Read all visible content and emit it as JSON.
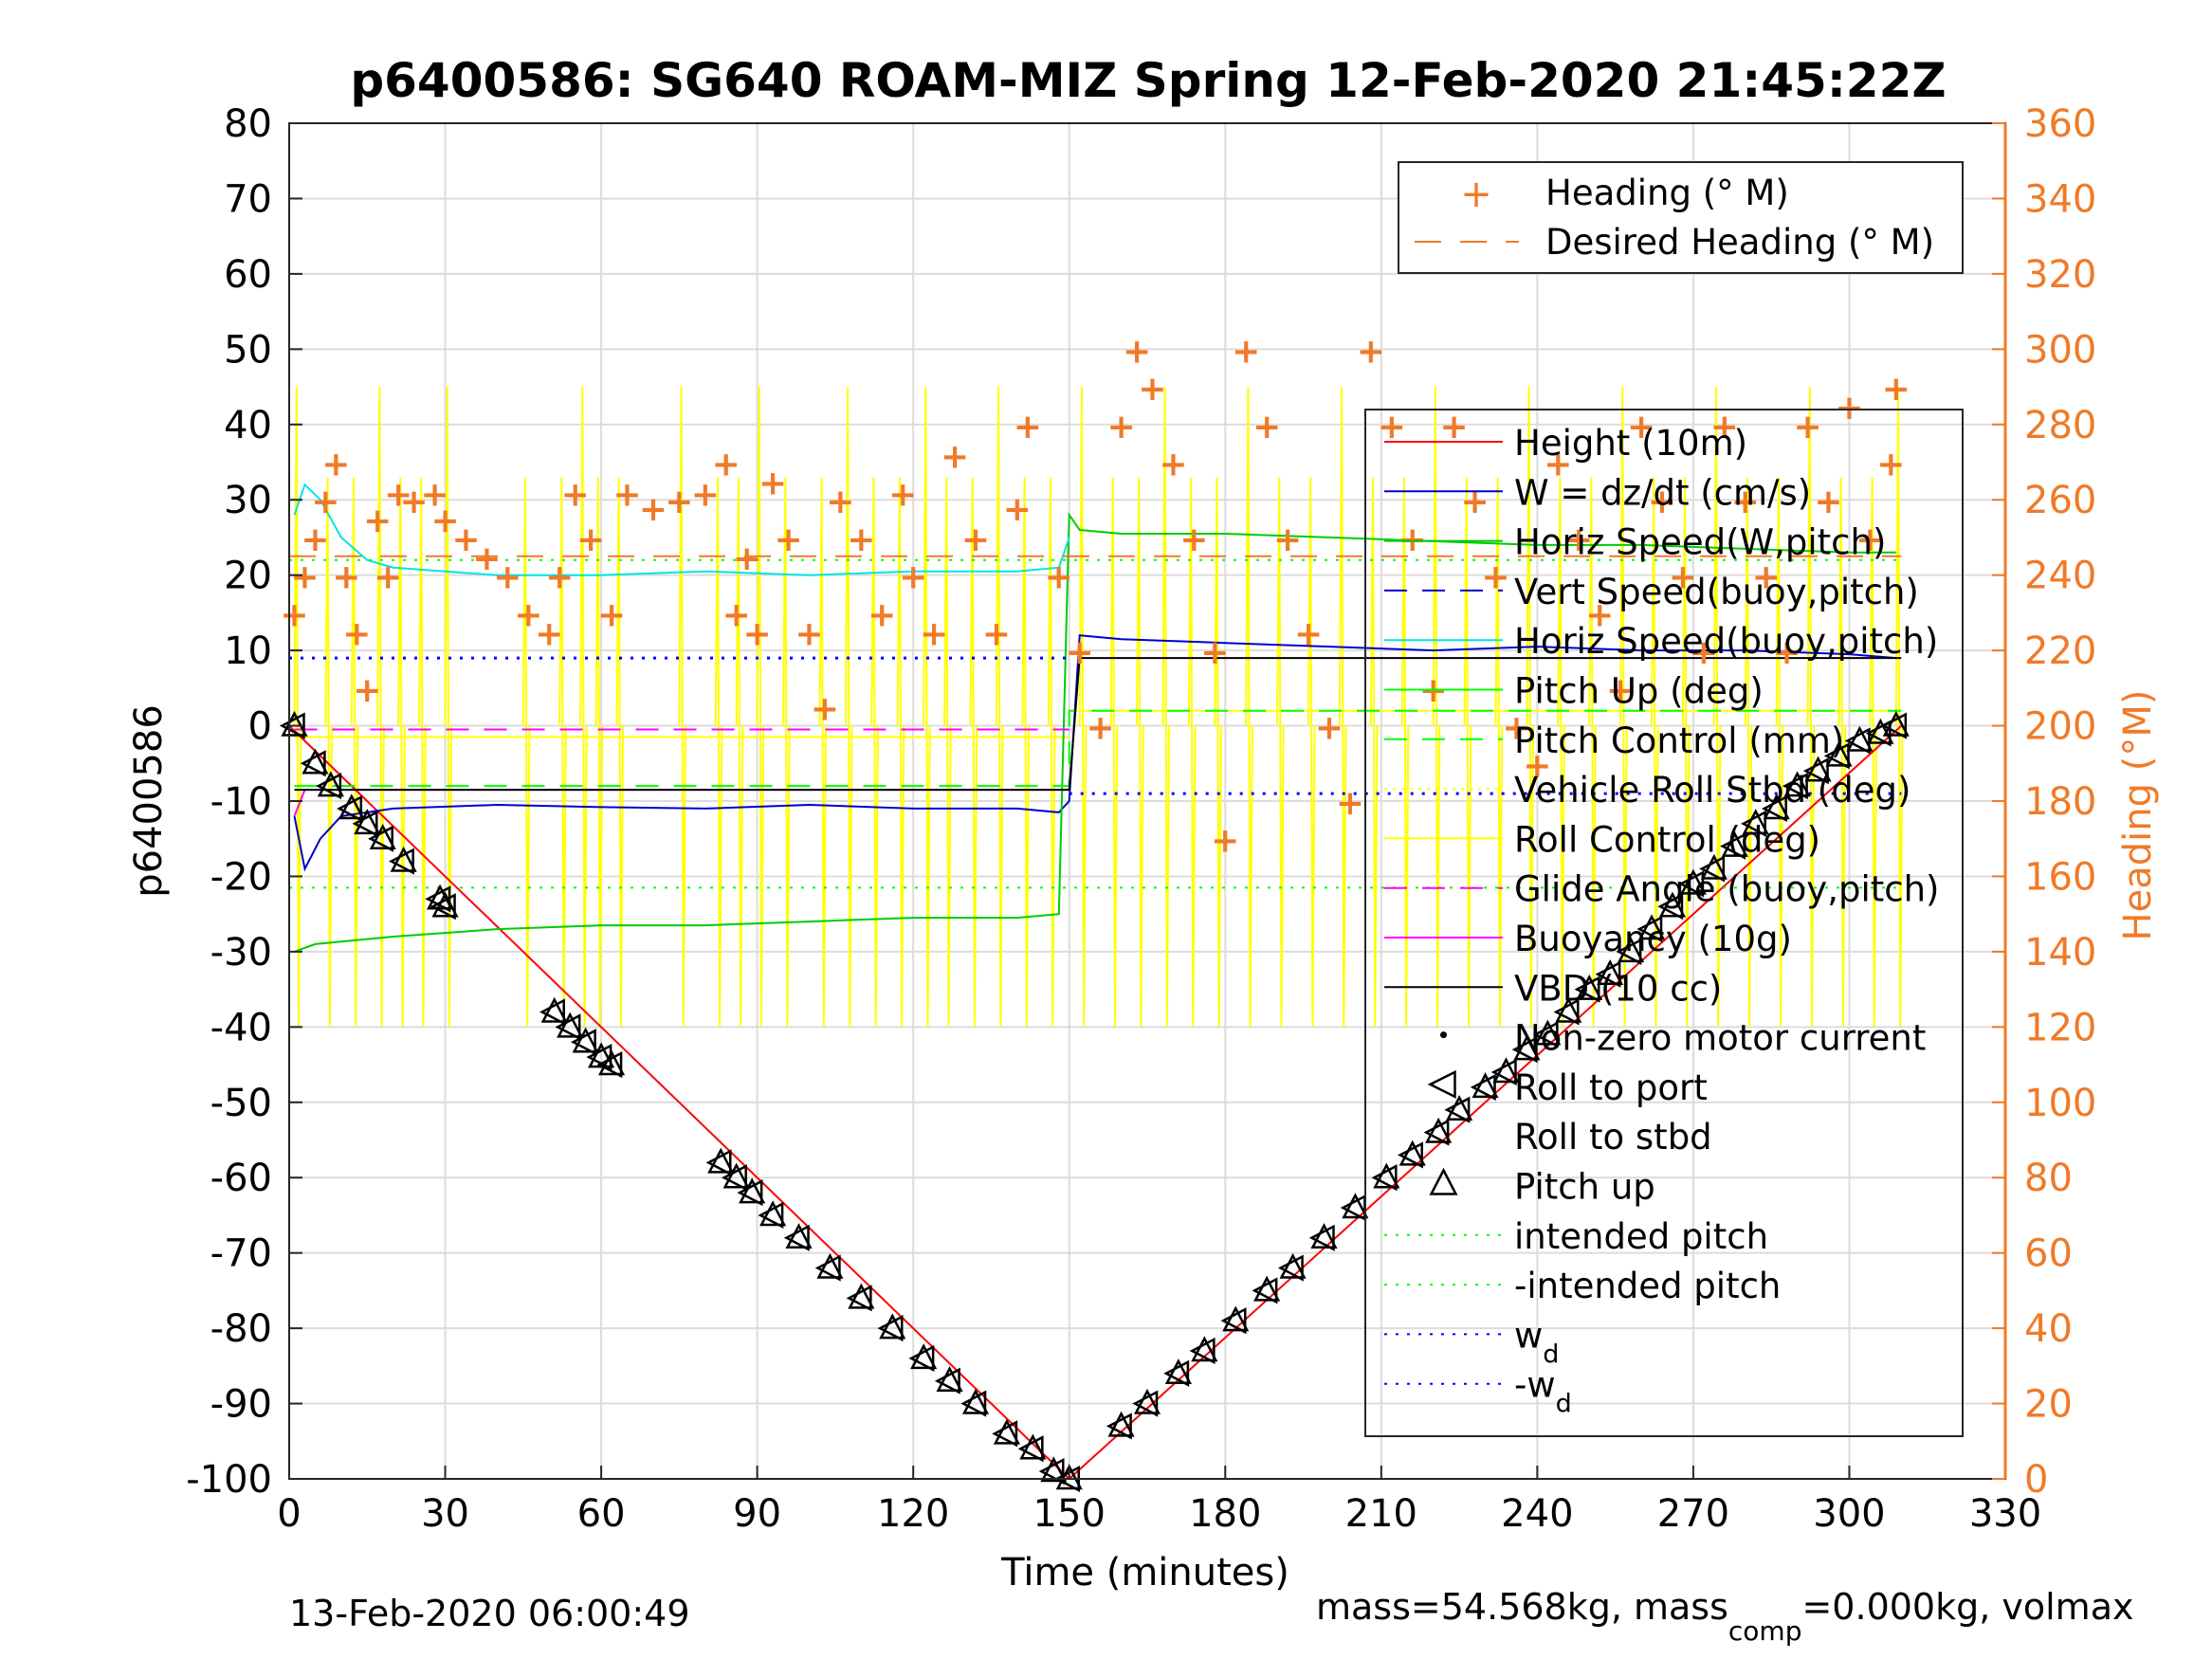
{
  "chart_data": {
    "type": "line",
    "title": "p6400586: SG640 ROAM-MIZ Spring 12-Feb-2020 21:45:22Z",
    "xlabel": "Time (minutes)",
    "ylabel_left": "p6400586",
    "ylabel_right": "Heading (°M)",
    "xlim": [
      0,
      330
    ],
    "ylim_left": [
      -100,
      80
    ],
    "ylim_right": [
      0,
      360
    ],
    "x_ticks": [
      "0",
      "30",
      "60",
      "90",
      "120",
      "150",
      "180",
      "210",
      "240",
      "270",
      "300",
      "330"
    ],
    "y_ticks_left": [
      "80",
      "70",
      "60",
      "50",
      "40",
      "30",
      "20",
      "10",
      "0",
      "-10",
      "-20",
      "-30",
      "-40",
      "-50",
      "-60",
      "-70",
      "-80",
      "-90",
      "-100"
    ],
    "y_ticks_right": [
      "360",
      "340",
      "320",
      "300",
      "280",
      "260",
      "240",
      "220",
      "200",
      "180",
      "160",
      "140",
      "120",
      "100",
      "80",
      "60",
      "40",
      "20",
      "0"
    ],
    "grid": true,
    "colors": {
      "heading": "#f07a28",
      "height": "#ff0000",
      "w": "#0000cc",
      "horiz_speed_w": "#00cc00",
      "horiz_speed_buoy": "#00e5e5",
      "pitch": "#00ff00",
      "roll": "#ffff00",
      "glide": "#ff00ff",
      "vbd": "#000000",
      "wd": "#0000ff"
    },
    "legend_heading": {
      "position": "top-right",
      "entries": [
        "Heading (° M)",
        "Desired Heading (° M)"
      ]
    },
    "legend_main": {
      "position": "right",
      "entries": [
        "Height (10m)",
        "W = dz/dt (cm/s)",
        "Horiz Speed(W,pitch)",
        "Vert Speed(buoy,pitch)",
        "Horiz Speed(buoy,pitch)",
        "Pitch Up (deg)",
        "Pitch Control (mm)",
        "Vehicle Roll Stbd (deg)",
        "Roll Control (deg)",
        "Glide Angle (buoy,pitch)",
        "Buoyancy (10g)",
        "VBD (10 cc)",
        "Non-zero motor current",
        "Roll to port",
        "Roll to stbd",
        "Pitch up",
        "intended pitch",
        "-intended pitch",
        "w",
        "-w"
      ],
      "subscript": "d"
    },
    "series": [
      {
        "name": "Height (10m)",
        "x": [
          0,
          150,
          310
        ],
        "values": [
          0,
          -100,
          0
        ]
      },
      {
        "name": "W = dz/dt (cm/s)",
        "x": [
          1,
          3,
          6,
          10,
          20,
          40,
          60,
          80,
          100,
          120,
          140,
          148,
          150,
          152,
          160,
          180,
          200,
          220,
          240,
          260,
          280,
          300,
          309
        ],
        "values": [
          -12,
          -19,
          -15,
          -12,
          -11,
          -10.5,
          -10.8,
          -11,
          -10.5,
          -11,
          -11,
          -11.5,
          -10,
          12,
          11.5,
          11,
          10.5,
          10,
          10.5,
          10,
          10,
          9.5,
          9
        ]
      },
      {
        "name": "Horiz Speed(W,pitch)",
        "x": [
          1,
          5,
          20,
          40,
          60,
          80,
          100,
          120,
          140,
          148,
          150,
          152,
          160,
          180,
          200,
          220,
          240,
          260,
          280,
          300,
          309
        ],
        "values": [
          -30,
          -29,
          -28,
          -27,
          -26.5,
          -26.5,
          -26,
          -25.5,
          -25.5,
          -25,
          28,
          26,
          25.5,
          25.5,
          25,
          24.5,
          24,
          24,
          23.5,
          23,
          23
        ]
      },
      {
        "name": "Horiz Speed(buoy,pitch)",
        "x": [
          1,
          3,
          6,
          10,
          15,
          20,
          40,
          60,
          80,
          100,
          120,
          140,
          148,
          150
        ],
        "values": [
          28,
          32,
          30,
          25,
          22,
          21,
          20,
          20,
          20.5,
          20,
          20.5,
          20.5,
          21,
          25
        ]
      },
      {
        "name": "Pitch Control (mm)",
        "x": [
          1,
          150,
          150,
          310
        ],
        "values": [
          -8,
          -8,
          2,
          2
        ]
      },
      {
        "name": "Glide Angle (buoy,pitch)",
        "x": [
          1,
          150
        ],
        "values": [
          -0.5,
          -0.5
        ]
      },
      {
        "name": "Buoyancy (10g)",
        "x": [
          1,
          3,
          150
        ],
        "values": [
          -12,
          -8.5,
          -8.5
        ]
      },
      {
        "name": "VBD (10 cc)",
        "x": [
          1,
          150,
          152,
          310
        ],
        "values": [
          -8.5,
          -8.5,
          9,
          9
        ]
      },
      {
        "name": "intended pitch",
        "x": [
          0,
          310
        ],
        "values": [
          22,
          22
        ]
      },
      {
        "name": "-intended pitch",
        "x": [
          0,
          310
        ],
        "values": [
          -21.5,
          -21.5
        ]
      },
      {
        "name": "w",
        "x": [
          0,
          150
        ],
        "values": [
          9,
          9
        ]
      },
      {
        "name": "-w",
        "x": [
          150,
          310
        ],
        "values": [
          -9,
          -9
        ]
      }
    ],
    "desired_heading": {
      "x": [
        0,
        310
      ],
      "values": [
        245,
        245
      ]
    },
    "heading_points": [
      [
        1,
        230
      ],
      [
        3,
        240
      ],
      [
        5,
        250
      ],
      [
        7,
        260
      ],
      [
        9,
        270
      ],
      [
        11,
        240
      ],
      [
        13,
        225
      ],
      [
        15,
        210
      ],
      [
        17,
        255
      ],
      [
        19,
        240
      ],
      [
        21,
        262
      ],
      [
        24,
        260
      ],
      [
        28,
        262
      ],
      [
        30,
        255
      ],
      [
        34,
        250
      ],
      [
        38,
        245
      ],
      [
        42,
        240
      ],
      [
        46,
        230
      ],
      [
        50,
        225
      ],
      [
        52,
        240
      ],
      [
        55,
        262
      ],
      [
        58,
        250
      ],
      [
        62,
        230
      ],
      [
        65,
        262
      ],
      [
        70,
        258
      ],
      [
        75,
        260
      ],
      [
        80,
        262
      ],
      [
        84,
        270
      ],
      [
        86,
        230
      ],
      [
        88,
        245
      ],
      [
        90,
        225
      ],
      [
        93,
        265
      ],
      [
        96,
        250
      ],
      [
        100,
        225
      ],
      [
        103,
        205
      ],
      [
        106,
        260
      ],
      [
        110,
        250
      ],
      [
        114,
        230
      ],
      [
        118,
        262
      ],
      [
        120,
        240
      ],
      [
        124,
        225
      ],
      [
        128,
        272
      ],
      [
        132,
        250
      ],
      [
        136,
        225
      ],
      [
        140,
        258
      ],
      [
        142,
        280
      ],
      [
        148,
        240
      ],
      [
        152,
        220
      ],
      [
        156,
        200
      ],
      [
        160,
        280
      ],
      [
        163,
        300
      ],
      [
        166,
        290
      ],
      [
        170,
        270
      ],
      [
        174,
        250
      ],
      [
        178,
        220
      ],
      [
        180,
        170
      ],
      [
        184,
        300
      ],
      [
        188,
        280
      ],
      [
        192,
        250
      ],
      [
        196,
        225
      ],
      [
        200,
        200
      ],
      [
        204,
        180
      ],
      [
        208,
        300
      ],
      [
        212,
        280
      ],
      [
        216,
        250
      ],
      [
        220,
        210
      ],
      [
        224,
        280
      ],
      [
        228,
        260
      ],
      [
        232,
        240
      ],
      [
        236,
        200
      ],
      [
        240,
        190
      ],
      [
        244,
        270
      ],
      [
        248,
        250
      ],
      [
        252,
        230
      ],
      [
        256,
        210
      ],
      [
        260,
        280
      ],
      [
        264,
        260
      ],
      [
        268,
        240
      ],
      [
        272,
        220
      ],
      [
        276,
        280
      ],
      [
        280,
        260
      ],
      [
        284,
        240
      ],
      [
        288,
        220
      ],
      [
        292,
        280
      ],
      [
        296,
        260
      ],
      [
        300,
        285
      ],
      [
        304,
        250
      ],
      [
        308,
        270
      ],
      [
        309,
        290
      ]
    ],
    "markers_triangle": [
      [
        1,
        0
      ],
      [
        5,
        -5
      ],
      [
        8,
        -8
      ],
      [
        12,
        -11
      ],
      [
        15,
        -13
      ],
      [
        18,
        -15
      ],
      [
        22,
        -18
      ],
      [
        29,
        -23
      ],
      [
        30,
        -24
      ],
      [
        51,
        -38
      ],
      [
        54,
        -40
      ],
      [
        57,
        -42
      ],
      [
        60,
        -44
      ],
      [
        62,
        -45
      ],
      [
        83,
        -58
      ],
      [
        86,
        -60
      ],
      [
        89,
        -62
      ],
      [
        93,
        -65
      ],
      [
        98,
        -68
      ],
      [
        104,
        -72
      ],
      [
        110,
        -76
      ],
      [
        116,
        -80
      ],
      [
        122,
        -84
      ],
      [
        127,
        -87
      ],
      [
        132,
        -90
      ],
      [
        138,
        -94
      ],
      [
        143,
        -96
      ],
      [
        147,
        -99
      ],
      [
        150,
        -100
      ],
      [
        160,
        -93
      ],
      [
        165,
        -90
      ],
      [
        171,
        -86
      ],
      [
        176,
        -83
      ],
      [
        182,
        -79
      ],
      [
        188,
        -75
      ],
      [
        193,
        -72
      ],
      [
        199,
        -68
      ],
      [
        205,
        -64
      ],
      [
        211,
        -60
      ],
      [
        216,
        -57
      ],
      [
        221,
        -54
      ],
      [
        225,
        -51
      ],
      [
        230,
        -48
      ],
      [
        234,
        -46
      ],
      [
        238,
        -43
      ],
      [
        242,
        -41
      ],
      [
        246,
        -38
      ],
      [
        250,
        -35
      ],
      [
        254,
        -33
      ],
      [
        258,
        -30
      ],
      [
        262,
        -27
      ],
      [
        266,
        -24
      ],
      [
        270,
        -21
      ],
      [
        274,
        -19
      ],
      [
        278,
        -16
      ],
      [
        282,
        -13
      ],
      [
        286,
        -11
      ],
      [
        290,
        -8
      ],
      [
        294,
        -6
      ],
      [
        298,
        -4
      ],
      [
        302,
        -2
      ],
      [
        306,
        -1
      ],
      [
        309,
        0
      ]
    ],
    "roll_spikes": [
      1,
      7,
      12,
      17,
      21,
      25,
      30,
      45,
      52,
      56,
      59,
      63,
      75,
      82,
      86,
      90,
      95,
      102,
      107,
      112,
      117,
      122,
      126,
      131,
      136,
      141,
      146,
      152,
      158,
      163,
      168,
      173,
      178,
      184,
      190,
      196,
      202,
      208,
      214,
      220,
      226,
      232,
      238,
      244,
      250,
      256,
      262,
      268,
      274,
      280,
      286,
      292,
      298,
      304,
      309
    ]
  },
  "footer": {
    "date": "13-Feb-2020 06:00:49",
    "mass_a": "mass=54.568kg, mass",
    "mass_sub": "comp",
    "mass_b": "=0.000kg, volmax"
  }
}
